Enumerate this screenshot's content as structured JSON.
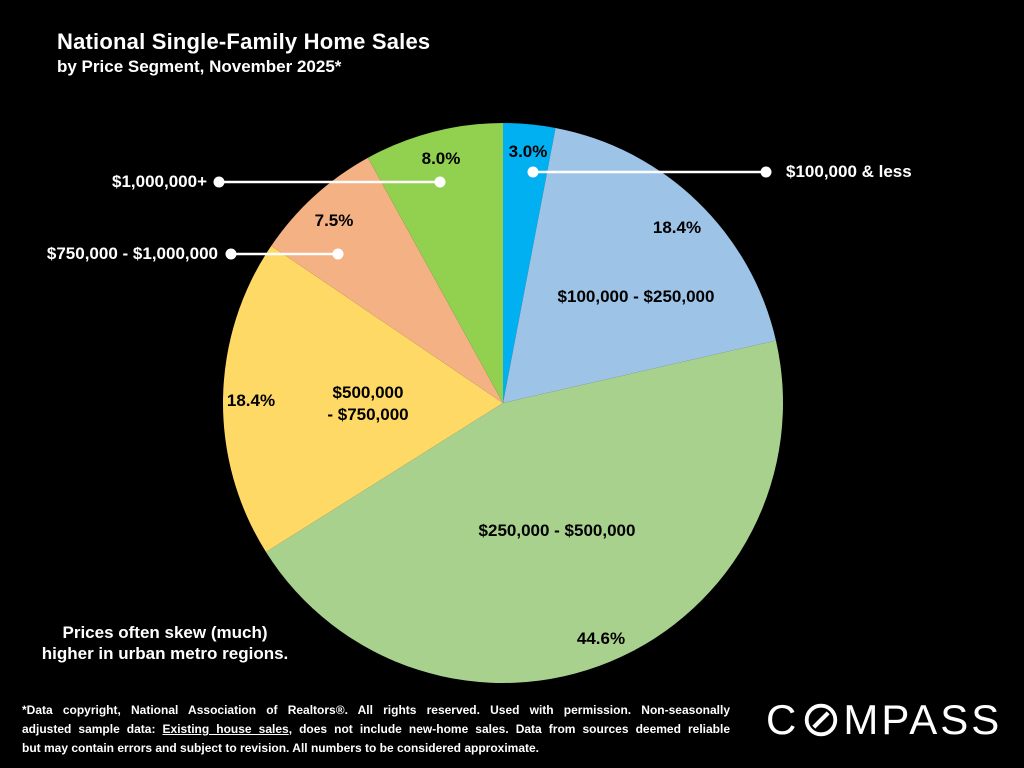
{
  "title": "National Single-Family Home Sales",
  "subtitle": "by Price Segment, November 2025*",
  "chart_data": {
    "type": "pie",
    "title": "National Single-Family Home Sales by Price Segment, November 2025",
    "start_angle_deg": 0,
    "direction": "clockwise",
    "legend_position": "labels-on-slices-and-callouts",
    "segments": [
      {
        "id": "100k-less",
        "label": "$100,000 & less",
        "value": 3.0,
        "pct_label": "3.0%",
        "color": "#00b0f0"
      },
      {
        "id": "100k-250k",
        "label": "$100,000 - $250,000",
        "value": 18.4,
        "pct_label": "18.4%",
        "color": "#9dc3e6"
      },
      {
        "id": "250k-500k",
        "label": "$250,000 - $500,000",
        "value": 44.6,
        "pct_label": "44.6%",
        "color": "#a9d18e"
      },
      {
        "id": "500k-750k",
        "label": "$500,000 - $750,000",
        "value": 18.4,
        "pct_label": "18.4%",
        "color": "#ffd966"
      },
      {
        "id": "750k-1m",
        "label": "$750,000 - $1,000,000",
        "value": 7.5,
        "pct_label": "7.5%",
        "color": "#f4b183"
      },
      {
        "id": "1m-plus",
        "label": "$1,000,000+",
        "value": 8.0,
        "pct_label": "8.0%",
        "color": "#92d050"
      }
    ]
  },
  "pie_labels": {
    "yellow_name_line1": "$500,000",
    "yellow_name_line2": "- $750,000"
  },
  "note": {
    "line1": "Prices often skew (much)",
    "line2": "higher in urban metro regions."
  },
  "footnote": {
    "line1": "*Data copyright, National Association of Realtors®. All rights reserved. Used with permission. Non-seasonally",
    "line2_pre": "adjusted sample data:  ",
    "line2_underline": "Existing house sales",
    "line2_post": ", does not include new-home sales. Data from sources deemed reliable",
    "line3": "but may contain errors and subject to revision. All numbers to be considered approximate."
  },
  "logo": {
    "name": "COMPASS",
    "pre": "C",
    "post": "MPASS"
  },
  "colors": {
    "background": "#000000",
    "text_light": "#ffffff",
    "text_dark": "#000000",
    "callout": "#ffffff"
  }
}
